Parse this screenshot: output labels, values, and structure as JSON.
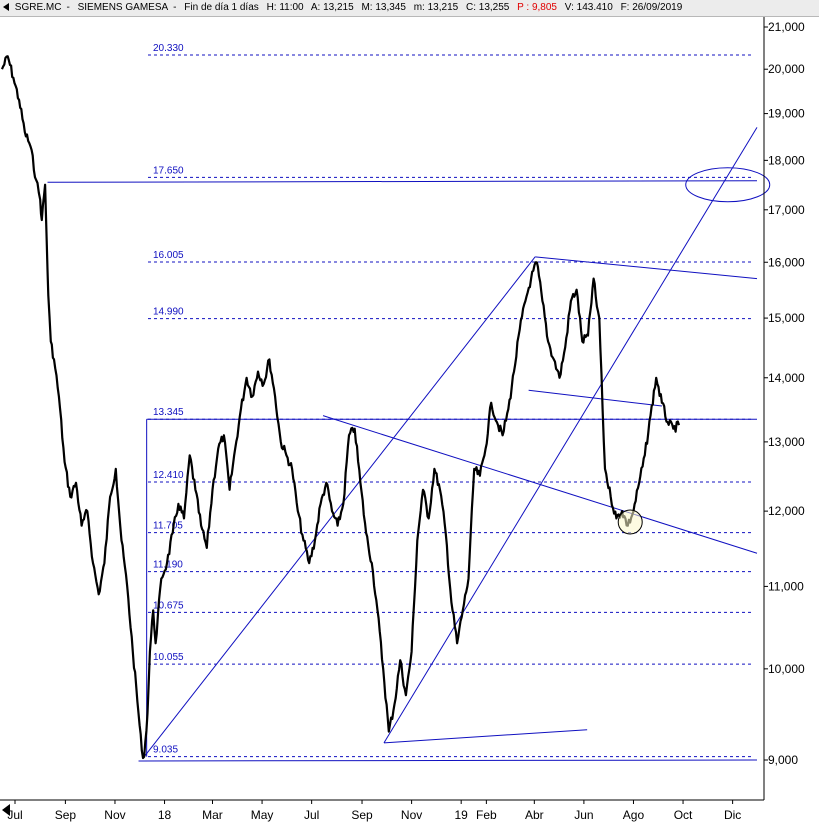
{
  "header": {
    "symbol": "SGRE.MC",
    "company": "SIEMENS GAMESA",
    "frame": "Fin de día 1 días",
    "time": "H: 11:00",
    "open": "A: 13,215",
    "high": "M: 13,345",
    "low": "m: 13,215",
    "close": "C: 13,255",
    "change": "P : 9,805",
    "volume": "V: 143.410",
    "date": "F: 26/09/2019"
  },
  "colors": {
    "price": "#000000",
    "annotation": "#1010c0",
    "axis_text": "#000000",
    "level_label": "#1010c0",
    "change_text": "#e00000"
  },
  "chart_data": {
    "type": "line",
    "y_axis": {
      "scale": "log",
      "range": [
        8800,
        21000
      ],
      "ticks": [
        "9,000",
        "10,000",
        "11,000",
        "12,000",
        "13,000",
        "14,000",
        "15,000",
        "16,000",
        "17,000",
        "18,000",
        "19,000",
        "20,000",
        "21,000"
      ],
      "tick_values": [
        9000,
        10000,
        11000,
        12000,
        13000,
        14000,
        15000,
        16000,
        17000,
        18000,
        19000,
        20000,
        21000
      ]
    },
    "x_axis": {
      "range": [
        "2017-06-15",
        "2019-12-31"
      ],
      "ticks": [
        {
          "label": "Jul",
          "date": "2017-07-01"
        },
        {
          "label": "Sep",
          "date": "2017-09-01"
        },
        {
          "label": "Nov",
          "date": "2017-11-01"
        },
        {
          "label": "18",
          "date": "2018-01-01"
        },
        {
          "label": "Mar",
          "date": "2018-03-01"
        },
        {
          "label": "May",
          "date": "2018-05-01"
        },
        {
          "label": "Jul",
          "date": "2018-07-01"
        },
        {
          "label": "Sep",
          "date": "2018-09-01"
        },
        {
          "label": "Nov",
          "date": "2018-11-01"
        },
        {
          "label": "19",
          "date": "2019-01-01"
        },
        {
          "label": "Feb",
          "date": "2019-02-01"
        },
        {
          "label": "Abr",
          "date": "2019-04-01"
        },
        {
          "label": "Jun",
          "date": "2019-06-01"
        },
        {
          "label": "Ago",
          "date": "2019-08-01"
        },
        {
          "label": "Oct",
          "date": "2019-10-01"
        },
        {
          "label": "Dic",
          "date": "2019-12-01"
        }
      ]
    },
    "levels": [
      {
        "label": "20.330",
        "value": 20330
      },
      {
        "label": "17.650",
        "value": 17650
      },
      {
        "label": "16.005",
        "value": 16005
      },
      {
        "label": "14.990",
        "value": 14990
      },
      {
        "label": "13.345",
        "value": 13345
      },
      {
        "label": "12.410",
        "value": 12410
      },
      {
        "label": "11.705",
        "value": 11705
      },
      {
        "label": "11.190",
        "value": 11190
      },
      {
        "label": "10.675",
        "value": 10675
      },
      {
        "label": "10.055",
        "value": 10055
      },
      {
        "label": "9.035",
        "value": 9035
      }
    ],
    "price": [
      [
        "2017-06-15",
        20000
      ],
      [
        "2017-06-22",
        20300
      ],
      [
        "2017-06-29",
        19800
      ],
      [
        "2017-07-06",
        19300
      ],
      [
        "2017-07-13",
        18600
      ],
      [
        "2017-07-20",
        18300
      ],
      [
        "2017-07-27",
        17600
      ],
      [
        "2017-08-01",
        17200
      ],
      [
        "2017-08-03",
        16800
      ],
      [
        "2017-08-07",
        17500
      ],
      [
        "2017-08-09",
        16400
      ],
      [
        "2017-08-11",
        15400
      ],
      [
        "2017-08-14",
        14600
      ],
      [
        "2017-08-18",
        14300
      ],
      [
        "2017-08-24",
        13700
      ],
      [
        "2017-08-31",
        12700
      ],
      [
        "2017-09-07",
        12200
      ],
      [
        "2017-09-14",
        12400
      ],
      [
        "2017-09-21",
        11800
      ],
      [
        "2017-09-28",
        12000
      ],
      [
        "2017-10-05",
        11300
      ],
      [
        "2017-10-12",
        10900
      ],
      [
        "2017-10-19",
        11300
      ],
      [
        "2017-10-26",
        12200
      ],
      [
        "2017-11-02",
        12600
      ],
      [
        "2017-11-09",
        11600
      ],
      [
        "2017-11-16",
        11000
      ],
      [
        "2017-11-23",
        10200
      ],
      [
        "2017-11-30",
        9500
      ],
      [
        "2017-12-04",
        9100
      ],
      [
        "2017-12-07",
        9035
      ],
      [
        "2017-12-11",
        9500
      ],
      [
        "2017-12-14",
        10200
      ],
      [
        "2017-12-18",
        10700
      ],
      [
        "2017-12-21",
        10300
      ],
      [
        "2017-12-28",
        11100
      ],
      [
        "2018-01-04",
        11300
      ],
      [
        "2018-01-11",
        11700
      ],
      [
        "2018-01-18",
        12100
      ],
      [
        "2018-01-25",
        11900
      ],
      [
        "2018-02-01",
        12800
      ],
      [
        "2018-02-08",
        12300
      ],
      [
        "2018-02-15",
        11800
      ],
      [
        "2018-02-22",
        11500
      ],
      [
        "2018-03-01",
        12300
      ],
      [
        "2018-03-08",
        12900
      ],
      [
        "2018-03-15",
        13100
      ],
      [
        "2018-03-22",
        12300
      ],
      [
        "2018-03-29",
        12900
      ],
      [
        "2018-04-05",
        13500
      ],
      [
        "2018-04-12",
        14000
      ],
      [
        "2018-04-19",
        13700
      ],
      [
        "2018-04-26",
        14100
      ],
      [
        "2018-05-03",
        13900
      ],
      [
        "2018-05-10",
        14300
      ],
      [
        "2018-05-17",
        13700
      ],
      [
        "2018-05-24",
        13000
      ],
      [
        "2018-05-31",
        12800
      ],
      [
        "2018-06-07",
        12600
      ],
      [
        "2018-06-14",
        12000
      ],
      [
        "2018-06-21",
        11600
      ],
      [
        "2018-06-28",
        11300
      ],
      [
        "2018-07-05",
        11600
      ],
      [
        "2018-07-12",
        12100
      ],
      [
        "2018-07-19",
        12400
      ],
      [
        "2018-07-26",
        12000
      ],
      [
        "2018-08-02",
        11800
      ],
      [
        "2018-08-09",
        12100
      ],
      [
        "2018-08-16",
        13100
      ],
      [
        "2018-08-23",
        13200
      ],
      [
        "2018-08-30",
        12400
      ],
      [
        "2018-09-06",
        11700
      ],
      [
        "2018-09-13",
        11300
      ],
      [
        "2018-09-20",
        10700
      ],
      [
        "2018-09-27",
        10000
      ],
      [
        "2018-10-04",
        9300
      ],
      [
        "2018-10-11",
        9600
      ],
      [
        "2018-10-18",
        10100
      ],
      [
        "2018-10-25",
        9700
      ],
      [
        "2018-11-01",
        10200
      ],
      [
        "2018-11-08",
        11600
      ],
      [
        "2018-11-15",
        12300
      ],
      [
        "2018-11-22",
        11900
      ],
      [
        "2018-11-29",
        12600
      ],
      [
        "2018-12-06",
        12300
      ],
      [
        "2018-12-13",
        11700
      ],
      [
        "2018-12-20",
        10800
      ],
      [
        "2018-12-27",
        10300
      ],
      [
        "2019-01-03",
        10700
      ],
      [
        "2019-01-10",
        11100
      ],
      [
        "2019-01-17",
        12600
      ],
      [
        "2019-01-24",
        12500
      ],
      [
        "2019-01-31",
        12900
      ],
      [
        "2019-02-07",
        13600
      ],
      [
        "2019-02-14",
        13300
      ],
      [
        "2019-02-21",
        13100
      ],
      [
        "2019-02-28",
        13500
      ],
      [
        "2019-03-07",
        14100
      ],
      [
        "2019-03-14",
        14800
      ],
      [
        "2019-03-21",
        15300
      ],
      [
        "2019-03-28",
        15700
      ],
      [
        "2019-04-04",
        16000
      ],
      [
        "2019-04-11",
        15300
      ],
      [
        "2019-04-18",
        14600
      ],
      [
        "2019-04-25",
        14300
      ],
      [
        "2019-05-02",
        14000
      ],
      [
        "2019-05-09",
        14500
      ],
      [
        "2019-05-16",
        15300
      ],
      [
        "2019-05-23",
        15500
      ],
      [
        "2019-05-30",
        14600
      ],
      [
        "2019-06-06",
        14700
      ],
      [
        "2019-06-13",
        15700
      ],
      [
        "2019-06-17",
        15200
      ],
      [
        "2019-06-20",
        15000
      ],
      [
        "2019-06-24",
        13500
      ],
      [
        "2019-06-27",
        12600
      ],
      [
        "2019-07-04",
        12200
      ],
      [
        "2019-07-11",
        11900
      ],
      [
        "2019-07-18",
        12000
      ],
      [
        "2019-07-25",
        11800
      ],
      [
        "2019-08-01",
        12000
      ],
      [
        "2019-08-08",
        12400
      ],
      [
        "2019-08-15",
        12800
      ],
      [
        "2019-08-22",
        13400
      ],
      [
        "2019-08-29",
        14000
      ],
      [
        "2019-09-05",
        13600
      ],
      [
        "2019-09-12",
        13300
      ],
      [
        "2019-09-19",
        13200
      ],
      [
        "2019-09-26",
        13255
      ]
    ],
    "trendlines": [
      {
        "from": [
          "2017-12-07",
          9035
        ],
        "to": [
          "2019-04-02",
          16100
        ]
      },
      {
        "from": [
          "2018-09-28",
          9180
        ],
        "to": [
          "2019-12-31",
          18700
        ]
      },
      {
        "from": [
          "2018-09-28",
          9180
        ],
        "to": [
          "2019-06-05",
          9320
        ]
      },
      {
        "from": [
          "2017-11-30",
          8990
        ],
        "to": [
          "2019-12-31",
          9000
        ]
      },
      {
        "from": [
          "2019-04-02",
          16100
        ],
        "to": [
          "2019-12-31",
          15700
        ]
      },
      {
        "from": [
          "2018-07-15",
          13400
        ],
        "to": [
          "2019-12-31",
          11430
        ]
      },
      {
        "from": [
          "2019-03-25",
          13800
        ],
        "to": [
          "2019-09-05",
          13550
        ]
      },
      {
        "from": [
          "2017-08-10",
          17550
        ],
        "to": [
          "2019-12-31",
          17580
        ]
      },
      {
        "from": [
          "2018-07-10",
          13345
        ],
        "to": [
          "2019-12-31",
          13345
        ]
      },
      {
        "from": [
          "2017-12-10",
          9035
        ],
        "to": [
          "2017-12-10",
          13345
        ]
      },
      {
        "from": [
          "2017-12-10",
          13345
        ],
        "to": [
          "2018-07-10",
          13345
        ]
      }
    ],
    "annotations": [
      {
        "shape": "ellipse",
        "center": [
          "2019-11-25",
          17500
        ]
      },
      {
        "shape": "circle",
        "center": [
          "2019-07-28",
          11850
        ]
      }
    ]
  }
}
